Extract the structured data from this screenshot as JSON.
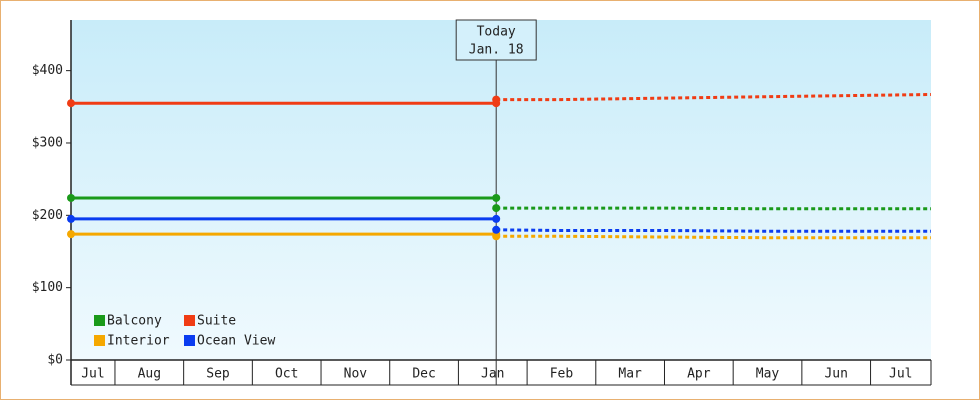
{
  "chart_data": {
    "type": "line",
    "categories": [
      "Jul",
      "Aug",
      "Sep",
      "Oct",
      "Nov",
      "Dec",
      "Jan",
      "Feb",
      "Mar",
      "Apr",
      "May",
      "Jun",
      "Jul"
    ],
    "xlim": [
      0.36,
      12.88
    ],
    "x": [
      0.36,
      6.55
    ],
    "forecast_x": [
      6.55,
      7.5,
      9,
      10.5,
      12.88
    ],
    "ylim": [
      0,
      470
    ],
    "yticks": [
      {
        "value": 0,
        "label": "$0"
      },
      {
        "value": 100,
        "label": "$100"
      },
      {
        "value": 200,
        "label": "$200"
      },
      {
        "value": 300,
        "label": "$300"
      },
      {
        "value": 400,
        "label": "$400"
      }
    ],
    "grid": false,
    "legend": "bottom-left",
    "annotation": {
      "label": "Today",
      "date": "Jan. 18",
      "x": 6.55
    },
    "series": [
      {
        "name": "Balcony",
        "color": "#1a9a1a",
        "values": [
          224,
          224
        ],
        "forecast": [
          210,
          210,
          210,
          209,
          209
        ]
      },
      {
        "name": "Suite",
        "color": "#f03c14",
        "values": [
          355,
          355
        ],
        "forecast": [
          360,
          360,
          362,
          364,
          367
        ]
      },
      {
        "name": "Interior",
        "color": "#f5a800",
        "values": [
          174,
          174
        ],
        "forecast": [
          171,
          171,
          170,
          169,
          169
        ]
      },
      {
        "name": "Ocean View",
        "color": "#0a3cf0",
        "values": [
          195,
          195
        ],
        "forecast": [
          180,
          179,
          179,
          178,
          178
        ]
      }
    ]
  }
}
